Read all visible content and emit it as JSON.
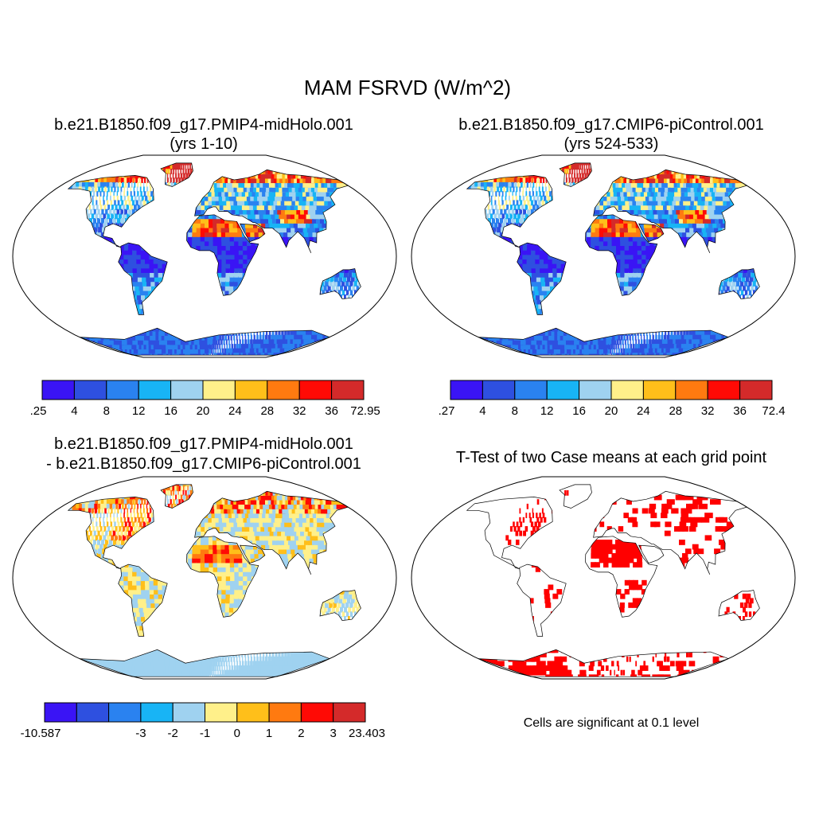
{
  "title": "MAM FSRVD (W/m^2)",
  "panels": {
    "top_left": {
      "title_line1": "b.e21.B1850.f09_g17.PMIP4-midHolo.001",
      "title_line2": "(yrs 1-10)",
      "colorbar_labels": [
        ".25",
        "4",
        "8",
        "12",
        "16",
        "20",
        "24",
        "28",
        "32",
        "36",
        "72.95"
      ]
    },
    "top_right": {
      "title_line1": "b.e21.B1850.f09_g17.CMIP6-piControl.001",
      "title_line2": "(yrs 524-533)",
      "colorbar_labels": [
        ".27",
        "4",
        "8",
        "12",
        "16",
        "20",
        "24",
        "28",
        "32",
        "36",
        "72.4"
      ]
    },
    "bottom_left": {
      "title_line1": "b.e21.B1850.f09_g17.PMIP4-midHolo.001",
      "title_line2": "- b.e21.B1850.f09_g17.CMIP6-piControl.001",
      "colorbar_labels": [
        "-10.587",
        "-3",
        "-2",
        "-1",
        "0",
        "1",
        "2",
        "3",
        "23.403"
      ]
    },
    "bottom_right": {
      "title_line1": "T-Test of two Case means at each grid point",
      "note": "Cells are significant at 0.1 level"
    }
  },
  "colors": {
    "abs_scale": [
      "#3a14f5",
      "#2e50e0",
      "#2a82f0",
      "#18b4f5",
      "#9fd2f0",
      "#fff08a",
      "#ffbf1a",
      "#ff7a10",
      "#ff0a05",
      "#d42a2a"
    ],
    "diff_scale": [
      "#3a14f5",
      "#2e50e0",
      "#2a82f0",
      "#18b4f5",
      "#9fd2f0",
      "#fff08a",
      "#ffbf1a",
      "#ff7a10",
      "#ff0a05",
      "#d42a2a"
    ],
    "significant": "#ff0000"
  }
}
